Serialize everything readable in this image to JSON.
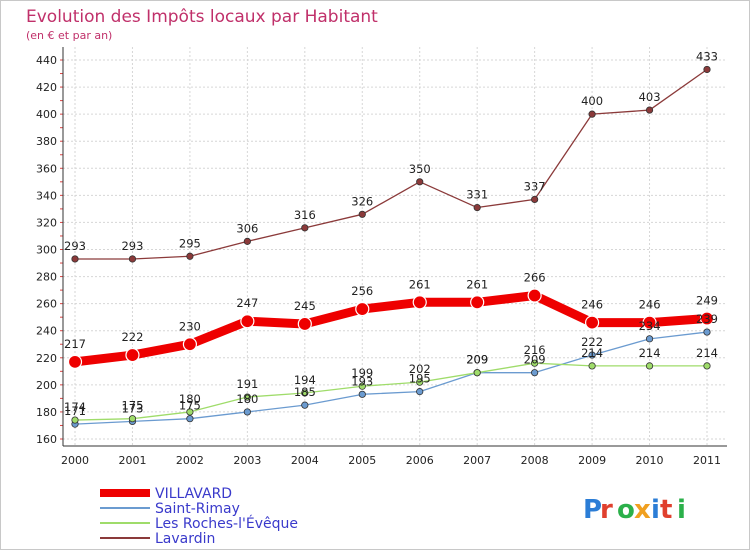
{
  "title": "Evolution des Impôts locaux par Habitant",
  "subtitle": "(en € et par an)",
  "logo": {
    "text": "Proxiti",
    "letter_colors": [
      "#2b7dd6",
      "#e0402e",
      "#2bb04a",
      "#f0a020",
      "#2b7dd6",
      "#e0402e",
      "#2bb04a"
    ]
  },
  "chart_data": {
    "type": "line",
    "title": "Evolution des Impôts locaux par Habitant",
    "subtitle": "(en € et par an)",
    "xlabel": "",
    "ylabel": "",
    "x": [
      "2000",
      "2001",
      "2002",
      "2003",
      "2004",
      "2005",
      "2006",
      "2007",
      "2008",
      "2009",
      "2010",
      "2011"
    ],
    "ylim": [
      160,
      440
    ],
    "yticks": [
      160,
      180,
      200,
      220,
      240,
      260,
      280,
      300,
      320,
      340,
      360,
      380,
      400,
      420,
      440
    ],
    "grid": true,
    "legend_position": "bottom-left",
    "series": [
      {
        "name": "VILLAVARD",
        "color": "#ee0000",
        "values": [
          217,
          222,
          230,
          247,
          245,
          256,
          261,
          261,
          266,
          246,
          246,
          249
        ],
        "labels": [
          "217",
          "222",
          "230",
          "247",
          "245",
          "256",
          "261",
          "261",
          "266",
          "246",
          "246",
          "249"
        ],
        "thick": true
      },
      {
        "name": "Saint-Rimay",
        "color": "#6b9bd0",
        "values": [
          171,
          173,
          175,
          180,
          185,
          193,
          195,
          209,
          209,
          222,
          234,
          239
        ],
        "labels": [
          "171",
          "173",
          "175",
          "180",
          "185",
          "193",
          "195",
          "209",
          "209",
          "222",
          "234",
          "239"
        ],
        "thick": false
      },
      {
        "name": "Les Roches-l'Évêque",
        "color": "#9fdc6a",
        "values": [
          174,
          175,
          180,
          191,
          194,
          199,
          202,
          209,
          216,
          214,
          214,
          214
        ],
        "labels": [
          "174",
          "175",
          "180",
          "191",
          "194",
          "199",
          "202",
          "209",
          "216",
          "214",
          "214",
          "214"
        ],
        "thick": false
      },
      {
        "name": "Lavardin",
        "color": "#8b3a3a",
        "values": [
          293,
          293,
          295,
          306,
          316,
          326,
          350,
          331,
          337,
          400,
          403,
          433
        ],
        "labels": [
          "293",
          "293",
          "295",
          "306",
          "316",
          "326",
          "350",
          "331",
          "337",
          "400",
          "403",
          "433"
        ],
        "thick": false
      }
    ]
  }
}
